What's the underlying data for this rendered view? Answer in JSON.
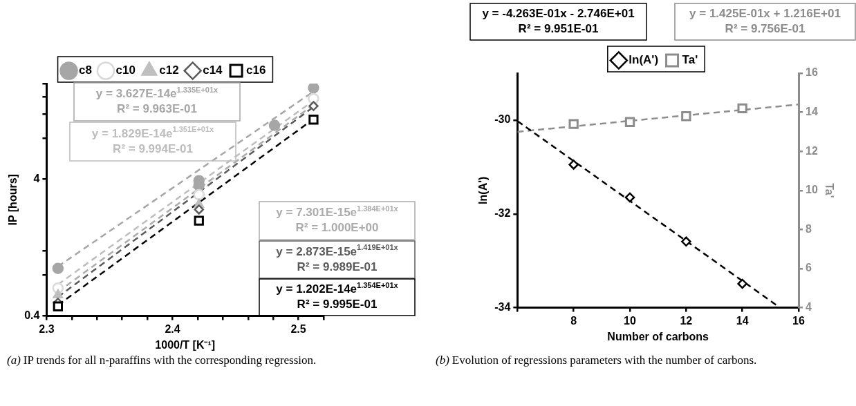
{
  "chart_data": [
    {
      "type": "scatter",
      "xlabel": "1000/T [K⁻¹]",
      "ylabel": "IP [hours]",
      "log": "y",
      "grid": false,
      "legend": "top",
      "xlim": [
        2.3,
        2.52
      ],
      "xticks": [
        2.3,
        {
          "value": 2.32,
          "label": null
        },
        {
          "value": 2.34,
          "label": null
        },
        {
          "value": 2.36,
          "label": null
        },
        {
          "value": 2.38,
          "label": null
        },
        2.4,
        {
          "value": 2.42,
          "label": null
        },
        {
          "value": 2.44,
          "label": null
        },
        {
          "value": 2.46,
          "label": null
        },
        {
          "value": 2.48,
          "label": null
        },
        2.5,
        {
          "value": 2.52,
          "label": null
        }
      ],
      "ylim": [
        0.4,
        20
      ],
      "yticks": [
        0.4,
        {
          "value": 0.8,
          "label": null
        },
        {
          "value": 1.2,
          "label": null
        },
        4,
        {
          "value": 8,
          "label": null
        },
        {
          "value": 12,
          "label": null
        },
        {
          "value": 16,
          "label": null
        },
        {
          "value": 20,
          "label": null
        }
      ],
      "series": [
        {
          "name": "c8",
          "marker": "circle",
          "color": "#a6a6a6",
          "x": [
            2.309,
            2.421,
            2.421,
            2.481,
            2.512
          ],
          "values": [
            0.89,
            3.9,
            3.6,
            9.9,
            18.6
          ]
        },
        {
          "name": "c10",
          "marker": "circle",
          "color": "#d9d9d9",
          "x": [
            2.309,
            2.421,
            2.512
          ],
          "values": [
            0.64,
            3.08,
            15.5
          ]
        },
        {
          "name": "c12",
          "marker": "triangle",
          "color": "#bfbfbf",
          "x": [
            2.309,
            2.421
          ],
          "values": [
            0.57,
            2.61
          ]
        },
        {
          "name": "c14",
          "marker": "diamond",
          "color": "#595959",
          "x": [
            2.309,
            2.421,
            2.512
          ],
          "values": [
            0.5,
            2.4,
            13.7
          ]
        },
        {
          "name": "c16",
          "marker": "square",
          "color": "#000000",
          "x": [
            2.309,
            2.421,
            2.512
          ],
          "values": [
            0.47,
            1.99,
            10.9
          ]
        },
        {
          "type": "line",
          "line_style": "dashed",
          "color": "#a6a6a6",
          "x": [
            2.309,
            2.512
          ],
          "values": [
            0.92,
            17.5
          ]
        },
        {
          "type": "line",
          "line_style": "dashed",
          "color": "#bdbdbd",
          "x": [
            2.309,
            2.512
          ],
          "values": [
            0.68,
            15
          ]
        },
        {
          "type": "line",
          "line_style": "dashed",
          "color": "#ababab",
          "x": [
            2.309,
            2.512
          ],
          "values": [
            0.6,
            14
          ]
        },
        {
          "type": "line",
          "line_style": "dashed",
          "color": "#595959",
          "x": [
            2.309,
            2.512
          ],
          "values": [
            0.55,
            13.5
          ]
        },
        {
          "type": "line",
          "line_style": "dashed",
          "color": "#000000",
          "x": [
            2.309,
            2.512
          ],
          "values": [
            0.48,
            11
          ]
        }
      ],
      "annotations": [
        "y = 3.627E-14e$^{1.335E+01x}$\nR² = 9.963E-01",
        "y = 1.829E-14e$^{1.351E+01x}$\nR² = 9.994E-01",
        "y = 7.301E-15e$^{1.384E+01x}$\nR² = 1.000E+00",
        "y = 2.873E-15e$^{1.419E+01x}$\nR² = 9.989E-01",
        "y = 1.202E-14e$^{1.354E+01x}$\nR² = 9.995E-01",
        "(a) IP trends for all n-paraffins with the corresponding regression."
      ]
    },
    {
      "type": "scatter",
      "xlabel": "Number of carbons",
      "ylabel": "ln(A')",
      "y2label": "Ta'",
      "grid": false,
      "legend": "top",
      "xlim": [
        6,
        16
      ],
      "xticks": [
        {
          "value": 6,
          "label": null
        },
        8,
        10,
        12,
        14,
        16
      ],
      "ylim": [
        -34,
        -29
      ],
      "yticks": [
        -34,
        -32,
        -30
      ],
      "y2lim": [
        4,
        16
      ],
      "y2ticks": [
        4,
        6,
        8,
        10,
        12,
        14,
        16
      ],
      "series": [
        {
          "name": "ln(A')",
          "marker": "diamond",
          "color": "#000000",
          "x": [
            8,
            10,
            12,
            14
          ],
          "values": [
            -30.95,
            -31.65,
            -32.59,
            -33.49
          ]
        },
        {
          "name": "Ta'",
          "marker": "square",
          "color": "#8c8c8c",
          "axis": "y2",
          "x": [
            8,
            10,
            12,
            14
          ],
          "values": [
            13.4,
            13.5,
            13.8,
            14.2
          ]
        },
        {
          "type": "line",
          "line_style": "dashed",
          "color": "#000000",
          "x": [
            6,
            15.2
          ],
          "values": [
            -30.02,
            -33.94
          ]
        },
        {
          "type": "line",
          "line_style": "dashed",
          "color": "#8c8c8c",
          "axis": "y2",
          "x": [
            6,
            16
          ],
          "values": [
            13.0,
            14.4
          ]
        }
      ],
      "annotations": [
        "y = -4.263E-01x - 2.746E+01\nR² = 9.951E-01",
        "y = 1.425E-01x + 1.216E+01\nR² = 9.756E-01",
        "(b) Evolution of regressions parameters with the number of carbons."
      ]
    }
  ]
}
